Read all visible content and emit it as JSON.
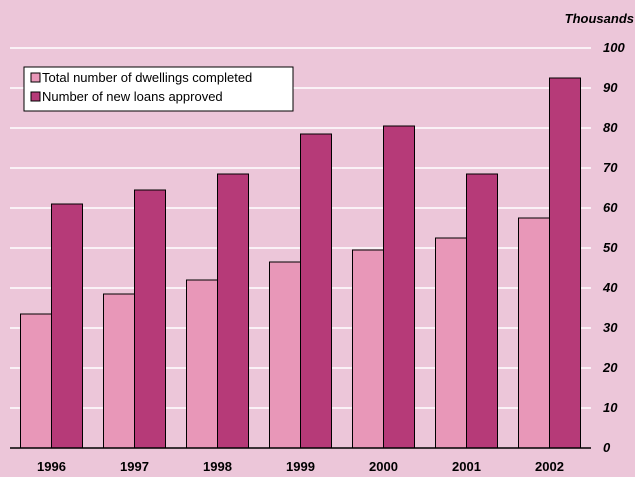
{
  "chart_data": {
    "type": "bar",
    "categories": [
      "1996",
      "1997",
      "1998",
      "1999",
      "2000",
      "2001",
      "2002"
    ],
    "series": [
      {
        "name": "Total number of dwellings completed",
        "color": "#e897b8",
        "values": [
          33.5,
          38.5,
          42,
          46.5,
          49.5,
          52.5,
          57.5
        ]
      },
      {
        "name": "Number of new loans approved",
        "color": "#b63a78",
        "values": [
          61,
          64.5,
          68.5,
          78.5,
          80.5,
          68.5,
          92.5
        ]
      }
    ],
    "unit_label": "Thousands",
    "ylim": [
      0,
      100
    ],
    "y_ticks": [
      "0",
      "10",
      "20",
      "30",
      "40",
      "50",
      "60",
      "70",
      "80",
      "90",
      "100"
    ],
    "grid": true,
    "legend_position": "top-left",
    "colors": {
      "background": "#ecc6d9",
      "gridline": "#ffffff",
      "axis": "#000000"
    }
  }
}
